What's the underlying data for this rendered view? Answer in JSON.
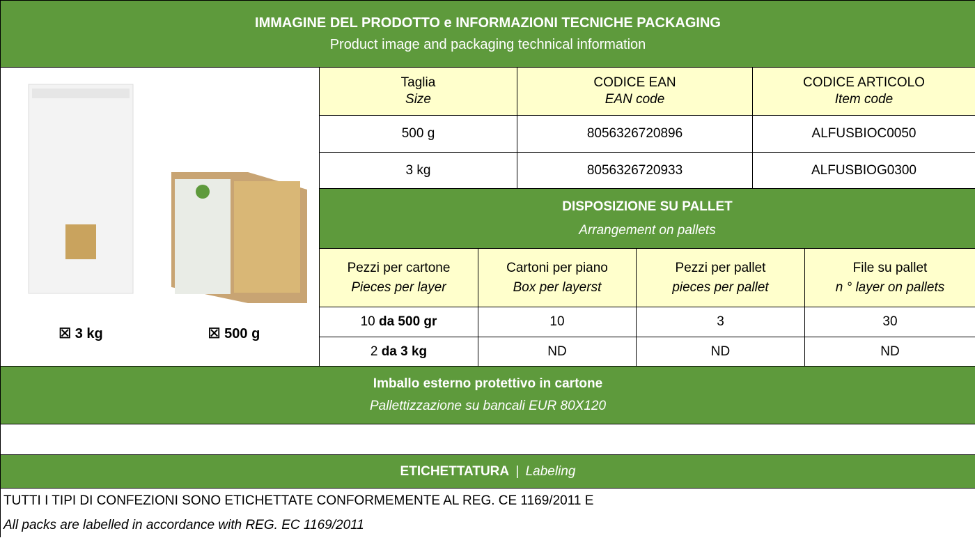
{
  "header": {
    "title": "IMMAGINE DEL PRODOTTO e INFORMAZIONI TECNICHE PACKAGING",
    "subtitle": "Product image and packaging technical information"
  },
  "products": [
    {
      "checkbox": "☒",
      "label": "3 kg"
    },
    {
      "checkbox": "☒",
      "label": "500 g"
    }
  ],
  "codes_table": {
    "columns": [
      {
        "label": "Taglia",
        "sublabel": "Size"
      },
      {
        "label": "CODICE EAN",
        "sublabel": "EAN code"
      },
      {
        "label": "CODICE ARTICOLO",
        "sublabel": "Item code"
      }
    ],
    "rows": [
      [
        "500 g",
        "8056326720896",
        "ALFUSBIOC0050"
      ],
      [
        "3 kg",
        "8056326720933",
        "ALFUSBIOG0300"
      ]
    ]
  },
  "pallet": {
    "title": "DISPOSIZIONE SU PALLET",
    "subtitle": "Arrangement on pallets",
    "columns": [
      {
        "label": "Pezzi per cartone",
        "sublabel": "Pieces per layer"
      },
      {
        "label": "Cartoni per piano",
        "sublabel": "Box per layerst"
      },
      {
        "label": "Pezzi per pallet",
        "sublabel": "pieces per pallet"
      },
      {
        "label": "File su pallet",
        "sublabel": "n ° layer on pallets"
      }
    ],
    "rows": [
      [
        {
          "count": "10",
          "unit": "da 500 gr"
        },
        "10",
        "3",
        "30"
      ],
      [
        {
          "count": "2",
          "unit": "da 3 kg"
        },
        "ND",
        "ND",
        "ND"
      ]
    ]
  },
  "packaging": {
    "title": "Imballo esterno protettivo in cartone",
    "subtitle": "Pallettizzazione su bancali EUR 80X120"
  },
  "labeling": {
    "title": "ETICHETTATURA",
    "separator": "|",
    "subtitle": "Labeling",
    "text": "TUTTI I TIPI DI CONFEZIONI SONO ETICHETTATE CONFORMEMENTE AL REG. CE 1169/2011 E",
    "translation": "All packs are labelled in accordance with REG. EC 1169/2011"
  }
}
